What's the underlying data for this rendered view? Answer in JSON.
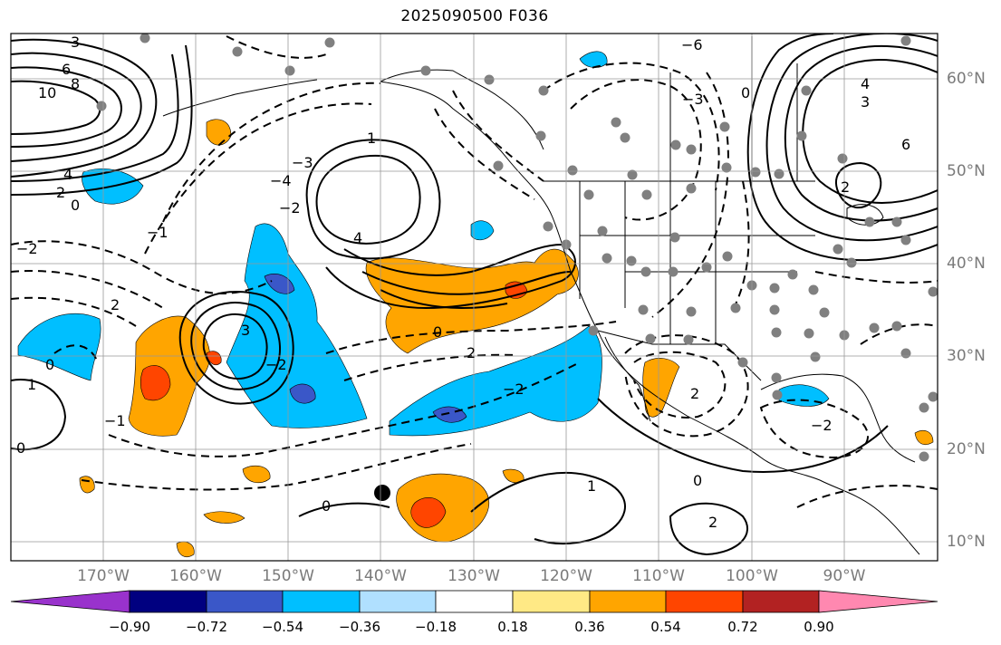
{
  "title": "2025090500 F036",
  "lat_labels": [
    "60°N",
    "50°N",
    "40°N",
    "30°N",
    "20°N",
    "10°N"
  ],
  "lon_labels": [
    "170°W",
    "160°W",
    "150°W",
    "140°W",
    "130°W",
    "120°W",
    "110°W",
    "100°W",
    "90°W"
  ],
  "colorbar": {
    "colors": [
      "#9932cc",
      "#000080",
      "#3a57c8",
      "#00bfff",
      "#b0e0ff",
      "#ffffff",
      "#ffe985",
      "#ffa500",
      "#ff4500",
      "#b22222",
      "#ff88b0"
    ],
    "ticks": [
      "−0.90",
      "−0.72",
      "−0.54",
      "−0.36",
      "−0.18",
      "0.18",
      "0.36",
      "0.54",
      "0.72",
      "0.90"
    ]
  },
  "contour_labels": [
    "3",
    "6",
    "10",
    "8",
    "4",
    "2",
    "0",
    "−2",
    "−1",
    "−3",
    "−4",
    "1",
    "−6",
    "4",
    "3",
    "6",
    "2",
    "0",
    "−3",
    "4",
    "−2",
    "2",
    "0",
    "3",
    "−2",
    "2",
    "−1",
    "0",
    "1",
    "−2",
    "2",
    "0",
    "−2",
    "2",
    "0",
    "1",
    "0"
  ],
  "colors": {
    "grid": "#999999",
    "land_line": "#000000",
    "dot": "#808080",
    "contour": "#000000"
  }
}
